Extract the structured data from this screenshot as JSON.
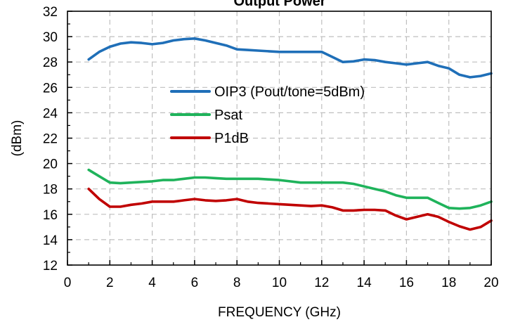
{
  "chart_data": {
    "type": "line",
    "title": "Output Power",
    "xlabel": "FREQUENCY (GHz)",
    "ylabel": "(dBm)",
    "xlim": [
      0,
      20
    ],
    "ylim": [
      12,
      32
    ],
    "x_ticks": [
      0,
      2,
      4,
      6,
      8,
      10,
      12,
      14,
      16,
      18,
      20
    ],
    "y_ticks": [
      12,
      14,
      16,
      18,
      20,
      22,
      24,
      26,
      28,
      30,
      32
    ],
    "grid": true,
    "legend_position": "center-left",
    "series": [
      {
        "name": "OIP3 (Pout/tone=5dBm)",
        "color": "#1f6fb8",
        "points": [
          [
            1,
            28.2
          ],
          [
            1.5,
            28.8
          ],
          [
            2,
            29.2
          ],
          [
            2.5,
            29.45
          ],
          [
            3,
            29.55
          ],
          [
            3.5,
            29.5
          ],
          [
            4,
            29.4
          ],
          [
            4.5,
            29.5
          ],
          [
            5,
            29.7
          ],
          [
            5.5,
            29.8
          ],
          [
            6,
            29.85
          ],
          [
            6.5,
            29.7
          ],
          [
            7,
            29.5
          ],
          [
            7.5,
            29.3
          ],
          [
            8,
            29.0
          ],
          [
            8.5,
            28.95
          ],
          [
            9,
            28.9
          ],
          [
            9.5,
            28.85
          ],
          [
            10,
            28.8
          ],
          [
            10.5,
            28.8
          ],
          [
            11,
            28.8
          ],
          [
            11.5,
            28.8
          ],
          [
            12,
            28.8
          ],
          [
            12.5,
            28.4
          ],
          [
            13,
            28.0
          ],
          [
            13.5,
            28.05
          ],
          [
            14,
            28.2
          ],
          [
            14.5,
            28.15
          ],
          [
            15,
            28.0
          ],
          [
            15.5,
            27.9
          ],
          [
            16,
            27.8
          ],
          [
            16.5,
            27.9
          ],
          [
            17,
            28.0
          ],
          [
            17.5,
            27.7
          ],
          [
            18,
            27.5
          ],
          [
            18.5,
            27.0
          ],
          [
            19,
            26.8
          ],
          [
            19.5,
            26.9
          ],
          [
            20,
            27.1
          ]
        ]
      },
      {
        "name": "Psat",
        "color": "#1fb35b",
        "points": [
          [
            1,
            19.5
          ],
          [
            1.5,
            19.0
          ],
          [
            2,
            18.5
          ],
          [
            2.5,
            18.45
          ],
          [
            3,
            18.5
          ],
          [
            3.5,
            18.55
          ],
          [
            4,
            18.6
          ],
          [
            4.5,
            18.7
          ],
          [
            5,
            18.7
          ],
          [
            5.5,
            18.8
          ],
          [
            6,
            18.9
          ],
          [
            6.5,
            18.9
          ],
          [
            7,
            18.85
          ],
          [
            7.5,
            18.8
          ],
          [
            8,
            18.8
          ],
          [
            8.5,
            18.8
          ],
          [
            9,
            18.8
          ],
          [
            9.5,
            18.75
          ],
          [
            10,
            18.7
          ],
          [
            10.5,
            18.6
          ],
          [
            11,
            18.5
          ],
          [
            11.5,
            18.5
          ],
          [
            12,
            18.5
          ],
          [
            12.5,
            18.5
          ],
          [
            13,
            18.5
          ],
          [
            13.5,
            18.4
          ],
          [
            14,
            18.2
          ],
          [
            14.5,
            18.0
          ],
          [
            15,
            17.8
          ],
          [
            15.5,
            17.5
          ],
          [
            16,
            17.3
          ],
          [
            16.5,
            17.3
          ],
          [
            17,
            17.3
          ],
          [
            17.5,
            16.9
          ],
          [
            18,
            16.5
          ],
          [
            18.5,
            16.45
          ],
          [
            19,
            16.5
          ],
          [
            19.5,
            16.7
          ],
          [
            20,
            17.0
          ]
        ]
      },
      {
        "name": "P1dB",
        "color": "#c00000",
        "points": [
          [
            1,
            18.0
          ],
          [
            1.5,
            17.2
          ],
          [
            2,
            16.6
          ],
          [
            2.5,
            16.6
          ],
          [
            3,
            16.75
          ],
          [
            3.5,
            16.85
          ],
          [
            4,
            17.0
          ],
          [
            4.5,
            17.0
          ],
          [
            5,
            17.0
          ],
          [
            5.5,
            17.1
          ],
          [
            6,
            17.2
          ],
          [
            6.5,
            17.1
          ],
          [
            7,
            17.05
          ],
          [
            7.5,
            17.1
          ],
          [
            8,
            17.2
          ],
          [
            8.5,
            17.0
          ],
          [
            9,
            16.9
          ],
          [
            9.5,
            16.85
          ],
          [
            10,
            16.8
          ],
          [
            10.5,
            16.75
          ],
          [
            11,
            16.7
          ],
          [
            11.5,
            16.65
          ],
          [
            12,
            16.7
          ],
          [
            12.5,
            16.55
          ],
          [
            13,
            16.3
          ],
          [
            13.5,
            16.3
          ],
          [
            14,
            16.35
          ],
          [
            14.5,
            16.35
          ],
          [
            15,
            16.3
          ],
          [
            15.5,
            15.9
          ],
          [
            16,
            15.6
          ],
          [
            16.5,
            15.8
          ],
          [
            17,
            16.0
          ],
          [
            17.5,
            15.8
          ],
          [
            18,
            15.4
          ],
          [
            18.5,
            15.05
          ],
          [
            19,
            14.8
          ],
          [
            19.5,
            15.0
          ],
          [
            20,
            15.5
          ]
        ]
      }
    ]
  }
}
